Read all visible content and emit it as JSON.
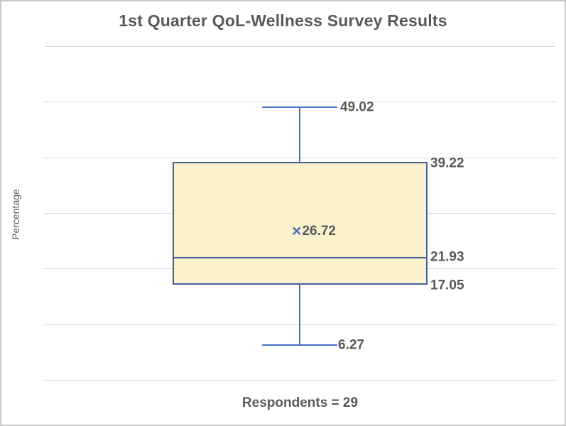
{
  "chart_data": {
    "type": "boxplot",
    "title": "1st Quarter QoL-Wellness Survey Results",
    "ylabel": "Percentage",
    "xlabel": "Respondents = 29",
    "respondents": 29,
    "ylim": [
      0,
      60
    ],
    "gridlines": [
      0,
      10,
      20,
      30,
      40,
      50,
      60
    ],
    "grid": true,
    "legend": false,
    "series": [
      {
        "name": "1st Quarter QoL-Wellness",
        "min": 6.27,
        "q1": 17.05,
        "median": 21.93,
        "q3": 39.22,
        "max": 49.02,
        "mean": 26.72
      }
    ],
    "data_labels": {
      "max": "49.02",
      "q3": "39.22",
      "mean": "26.72",
      "median": "21.93",
      "q1": "17.05",
      "min": "6.27"
    },
    "mean_marker_glyph": "×",
    "colors": {
      "box_fill": "#FCF1CD",
      "box_border": "#44609C",
      "whisker": "#4472C4",
      "mean_marker": "#4472C4",
      "gridline": "#D9D9D9",
      "text": "#595959",
      "frame_border": "#C8C8C8",
      "background": "#FFFFFF"
    }
  }
}
